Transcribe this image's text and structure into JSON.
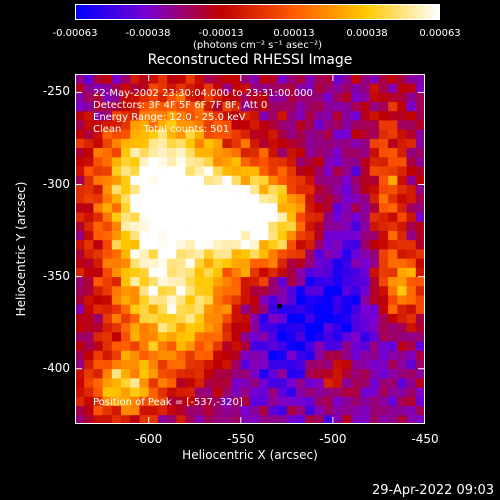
{
  "colorbar": {
    "ticks": [
      "-0.00063",
      "-0.00038",
      "-0.00013",
      "0.00013",
      "0.00038",
      "0.00063"
    ],
    "unit": "(photons cm⁻² s⁻¹ asec⁻²)",
    "colors": [
      "#0000ff",
      "#7a00d0",
      "#c00000",
      "#ff5a00",
      "#ffc800",
      "#ffffff"
    ]
  },
  "chart_data": {
    "type": "heatmap",
    "title": "Reconstructed RHESSI Image",
    "xlabel": "Heliocentric X (arcsec)",
    "ylabel": "Heliocentric Y (arcsec)",
    "xlim": [
      -640,
      -450
    ],
    "ylim": [
      -430,
      -240
    ],
    "x_ticks": [
      "-600",
      "-550",
      "-500",
      "-450"
    ],
    "x_tick_values": [
      -600,
      -550,
      -500,
      -450
    ],
    "y_ticks": [
      "-250",
      "-300",
      "-350",
      "-400"
    ],
    "y_tick_values": [
      -250,
      -300,
      -350,
      -400
    ],
    "info_lines": [
      "22-May-2002 23:30:04.000 to 23:31:00.000",
      "Detectors: 3F 4F 5F 6F 7F 8F, Att 0",
      "Energy Range: 12.0 - 25.0 keV",
      "Clean       Total counts: 501"
    ],
    "peak_label": "Position of Peak = [-537,-320]",
    "peak": [
      -537,
      -320
    ],
    "marker": [
      -529,
      -366
    ],
    "grid": false
  },
  "timestamp": "29-Apr-2022 09:03"
}
